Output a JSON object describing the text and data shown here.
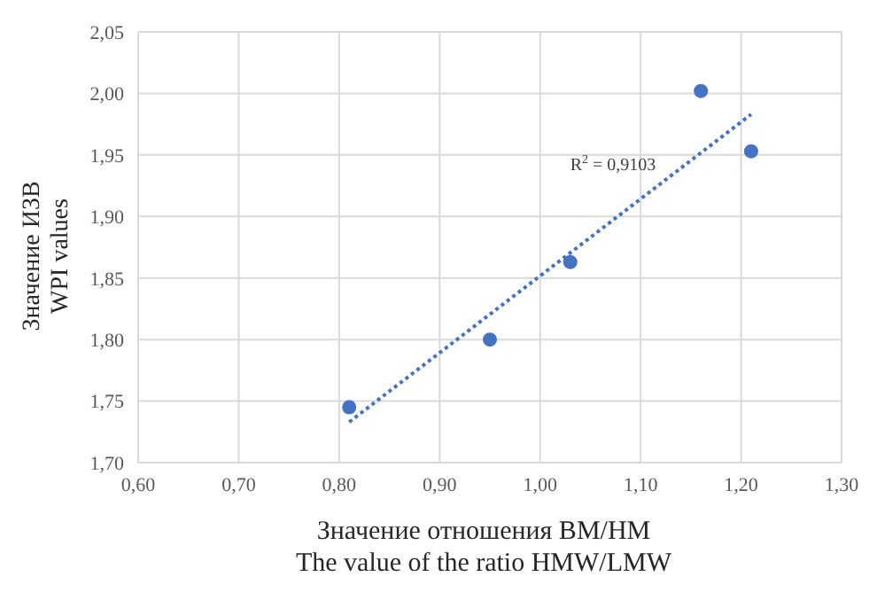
{
  "chart_data": {
    "type": "scatter",
    "xlabel": "Значение отношения ВМ/НМ\nThe value of the ratio HMW/LMW",
    "ylabel": "Значение ИЗВ\nWPI values",
    "xlim": [
      0.6,
      1.3
    ],
    "xticks": [
      {
        "value": 0.6,
        "label": "0,60"
      },
      {
        "value": 0.7,
        "label": "0,70"
      },
      {
        "value": 0.8,
        "label": "0,80"
      },
      {
        "value": 0.9,
        "label": "0,90"
      },
      {
        "value": 1.0,
        "label": "1,00"
      },
      {
        "value": 1.1,
        "label": "1,10"
      },
      {
        "value": 1.2,
        "label": "1,20"
      },
      {
        "value": 1.3,
        "label": "1,30"
      }
    ],
    "ylim": [
      1.7,
      2.05
    ],
    "yticks": [
      {
        "value": 1.7,
        "label": "1,70"
      },
      {
        "value": 1.75,
        "label": "1,75"
      },
      {
        "value": 1.8,
        "label": "1,80"
      },
      {
        "value": 1.85,
        "label": "1,85"
      },
      {
        "value": 1.9,
        "label": "1,90"
      },
      {
        "value": 1.95,
        "label": "1,95"
      },
      {
        "value": 2.0,
        "label": "2,00"
      },
      {
        "value": 2.05,
        "label": "2,05"
      }
    ],
    "grid": true,
    "legend": false,
    "series": [
      {
        "type": "scatter",
        "color": "#4472c4",
        "marker": "circle",
        "x": [
          0.81,
          0.95,
          1.03,
          1.16,
          1.21
        ],
        "values": [
          1.745,
          1.8,
          1.863,
          2.002,
          1.953
        ]
      },
      {
        "type": "line",
        "color": "#4472c4",
        "marker": "none",
        "line_style": "dotted",
        "x": [
          0.81,
          1.21
        ],
        "values": [
          1.733,
          1.983
        ]
      }
    ],
    "annotations": [
      "R$^{2}$ = 0,9103"
    ]
  }
}
